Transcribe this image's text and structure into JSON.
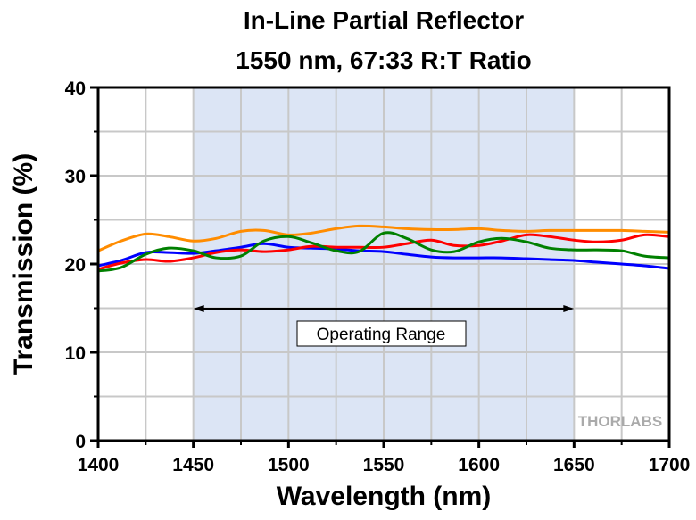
{
  "chart_data": {
    "type": "line",
    "title": "In-Line Partial Reflector",
    "subtitle": "1550 nm, 67:33 R:T Ratio",
    "xlabel": "Wavelength (nm)",
    "ylabel": "Transmission (%)",
    "xlim": [
      1400,
      1700
    ],
    "ylim": [
      0,
      40
    ],
    "xticks": [
      1400,
      1450,
      1500,
      1550,
      1600,
      1650,
      1700
    ],
    "yticks": [
      0,
      10,
      20,
      30,
      40
    ],
    "grid": true,
    "shaded_region": {
      "range": [
        1450,
        1650
      ],
      "color": "#dce5f5",
      "label": "Operating Range"
    },
    "watermark": "THORLABS",
    "x": [
      1400,
      1412,
      1425,
      1437,
      1450,
      1462,
      1475,
      1487,
      1500,
      1512,
      1525,
      1537,
      1550,
      1562,
      1575,
      1587,
      1600,
      1612,
      1625,
      1637,
      1650,
      1662,
      1675,
      1687,
      1700
    ],
    "series": [
      {
        "color": "#ff8c00",
        "values": [
          21.5,
          22.6,
          23.4,
          23.1,
          22.6,
          22.9,
          23.7,
          23.8,
          23.3,
          23.5,
          24.0,
          24.3,
          24.2,
          24.0,
          23.9,
          23.9,
          24.0,
          23.8,
          23.7,
          23.8,
          23.8,
          23.8,
          23.8,
          23.7,
          23.6
        ]
      },
      {
        "color": "#0000ff",
        "values": [
          19.8,
          20.4,
          21.3,
          21.3,
          21.2,
          21.5,
          21.9,
          22.3,
          21.9,
          21.8,
          21.7,
          21.5,
          21.4,
          21.1,
          20.8,
          20.7,
          20.7,
          20.7,
          20.6,
          20.5,
          20.4,
          20.2,
          20.0,
          19.8,
          19.5
        ]
      },
      {
        "color": "#ff0000",
        "values": [
          19.4,
          20.1,
          20.5,
          20.3,
          20.7,
          21.3,
          21.6,
          21.4,
          21.6,
          22.0,
          21.9,
          21.9,
          21.9,
          22.3,
          22.7,
          22.1,
          22.1,
          22.6,
          23.3,
          23.1,
          22.7,
          22.5,
          22.7,
          23.3,
          23.1
        ]
      },
      {
        "color": "#008000",
        "values": [
          19.2,
          19.6,
          21.1,
          21.8,
          21.5,
          20.7,
          20.9,
          22.6,
          23.1,
          22.4,
          21.5,
          21.4,
          23.5,
          22.9,
          21.6,
          21.4,
          22.5,
          22.9,
          22.5,
          21.8,
          21.6,
          21.6,
          21.5,
          20.9,
          20.7
        ]
      }
    ]
  }
}
